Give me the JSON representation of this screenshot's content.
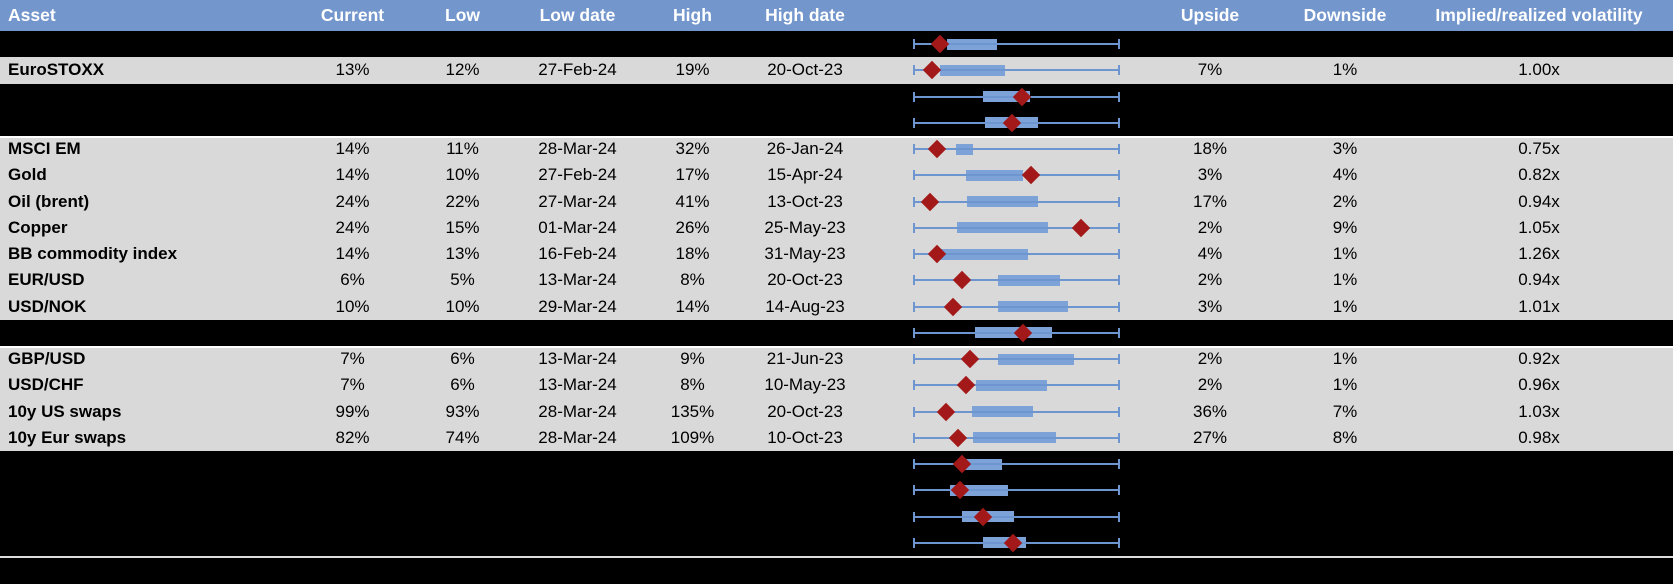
{
  "chart_data": {
    "type": "table",
    "columns": [
      "Asset",
      "Current",
      "Low",
      "Low date",
      "High",
      "High date",
      "",
      "Upside",
      "Downside",
      "Implied/realized volatility"
    ],
    "boxplot_units": "percent of plot-column width; w1/w2 = whisker ends, b1/b2 = box ends, d = red diamond (current) marker",
    "rows": [
      {
        "dark": true,
        "sep_above": false,
        "plot": {
          "w1": 19.3,
          "b1": 31.6,
          "b2": 49.8,
          "w2": 93.8,
          "d": 29.1
        }
      },
      {
        "dark": false,
        "sep_above": false,
        "cells": {
          "asset": "EuroSTOXX",
          "current": "13%",
          "low": "12%",
          "low_date": "27-Feb-24",
          "high": "19%",
          "high_date": "20-Oct-23",
          "upside": "7%",
          "downside": "1%",
          "implied_realized": "1.00x"
        },
        "plot": {
          "w1": 19.3,
          "b1": 29.1,
          "b2": 52.7,
          "w2": 93.8,
          "d": 26.2
        }
      },
      {
        "dark": true,
        "sep_above": false,
        "plot": {
          "w1": 19.3,
          "b1": 44.7,
          "b2": 61.8,
          "w2": 93.8,
          "d": 58.9
        }
      },
      {
        "dark": true,
        "sep_above": false,
        "plot": {
          "w1": 19.3,
          "b1": 45.5,
          "b2": 64.7,
          "w2": 93.8,
          "d": 55.3
        }
      },
      {
        "dark": false,
        "sep_above": true,
        "cells": {
          "asset": "MSCI EM",
          "current": "14%",
          "low": "11%",
          "low_date": "28-Mar-24",
          "high": "32%",
          "high_date": "26-Jan-24",
          "upside": "18%",
          "downside": "3%",
          "implied_realized": "0.75x"
        },
        "plot": {
          "w1": 19.3,
          "b1": 34.9,
          "b2": 41.1,
          "w2": 93.8,
          "d": 28.0
        }
      },
      {
        "dark": false,
        "sep_above": false,
        "cells": {
          "asset": "Gold",
          "current": "14%",
          "low": "10%",
          "low_date": "27-Feb-24",
          "high": "17%",
          "high_date": "15-Apr-24",
          "upside": "3%",
          "downside": "4%",
          "implied_realized": "0.82x"
        },
        "plot": {
          "w1": 19.3,
          "b1": 38.5,
          "b2": 59.3,
          "w2": 93.8,
          "d": 62.2
        }
      },
      {
        "dark": false,
        "sep_above": false,
        "cells": {
          "asset": "Oil (brent)",
          "current": "24%",
          "low": "22%",
          "low_date": "27-Mar-24",
          "high": "41%",
          "high_date": "13-Oct-23",
          "upside": "17%",
          "downside": "2%",
          "implied_realized": "0.94x"
        },
        "plot": {
          "w1": 19.3,
          "b1": 38.9,
          "b2": 64.7,
          "w2": 93.8,
          "d": 25.5
        }
      },
      {
        "dark": false,
        "sep_above": false,
        "cells": {
          "asset": "Copper",
          "current": "24%",
          "low": "15%",
          "low_date": "01-Mar-24",
          "high": "26%",
          "high_date": "25-May-23",
          "upside": "2%",
          "downside": "9%",
          "implied_realized": "1.05x"
        },
        "plot": {
          "w1": 19.3,
          "b1": 35.3,
          "b2": 68.4,
          "w2": 93.8,
          "d": 80.4
        }
      },
      {
        "dark": false,
        "sep_above": false,
        "cells": {
          "asset": "BB commodity index",
          "current": "14%",
          "low": "13%",
          "low_date": "16-Feb-24",
          "high": "18%",
          "high_date": "31-May-23",
          "upside": "4%",
          "downside": "1%",
          "implied_realized": "1.26x"
        },
        "plot": {
          "w1": 19.3,
          "b1": 29.1,
          "b2": 61.1,
          "w2": 93.8,
          "d": 28.0
        }
      },
      {
        "dark": false,
        "sep_above": false,
        "cells": {
          "asset": "EUR/USD",
          "current": "6%",
          "low": "5%",
          "low_date": "13-Mar-24",
          "high": "8%",
          "high_date": "20-Oct-23",
          "upside": "2%",
          "downside": "1%",
          "implied_realized": "0.94x"
        },
        "plot": {
          "w1": 19.3,
          "b1": 50.2,
          "b2": 72.7,
          "w2": 93.8,
          "d": 37.1
        }
      },
      {
        "dark": false,
        "sep_above": false,
        "cells": {
          "asset": "USD/NOK",
          "current": "10%",
          "low": "10%",
          "low_date": "29-Mar-24",
          "high": "14%",
          "high_date": "14-Aug-23",
          "upside": "3%",
          "downside": "1%",
          "implied_realized": "1.01x"
        },
        "plot": {
          "w1": 19.3,
          "b1": 50.2,
          "b2": 75.6,
          "w2": 93.8,
          "d": 33.8
        }
      },
      {
        "dark": true,
        "sep_above": false,
        "plot": {
          "w1": 19.3,
          "b1": 41.8,
          "b2": 69.8,
          "w2": 93.8,
          "d": 59.3
        }
      },
      {
        "dark": false,
        "sep_above": true,
        "cells": {
          "asset": "GBP/USD",
          "current": "7%",
          "low": "6%",
          "low_date": "13-Mar-24",
          "high": "9%",
          "high_date": "21-Jun-23",
          "upside": "2%",
          "downside": "1%",
          "implied_realized": "0.92x"
        },
        "plot": {
          "w1": 19.3,
          "b1": 50.2,
          "b2": 77.8,
          "w2": 93.8,
          "d": 40.0
        }
      },
      {
        "dark": false,
        "sep_above": false,
        "cells": {
          "asset": "USD/CHF",
          "current": "7%",
          "low": "6%",
          "low_date": "13-Mar-24",
          "high": "8%",
          "high_date": "10-May-23",
          "upside": "2%",
          "downside": "1%",
          "implied_realized": "0.96x"
        },
        "plot": {
          "w1": 19.3,
          "b1": 42.2,
          "b2": 68.0,
          "w2": 93.8,
          "d": 38.5
        }
      },
      {
        "dark": false,
        "sep_above": false,
        "cells": {
          "asset": "10y US swaps",
          "current": "99%",
          "low": "93%",
          "low_date": "28-Mar-24",
          "high": "135%",
          "high_date": "20-Oct-23",
          "upside": "36%",
          "downside": "7%",
          "implied_realized": "1.03x"
        },
        "plot": {
          "w1": 19.3,
          "b1": 40.7,
          "b2": 62.9,
          "w2": 93.8,
          "d": 31.3
        }
      },
      {
        "dark": false,
        "sep_above": false,
        "cells": {
          "asset": "10y Eur swaps",
          "current": "82%",
          "low": "74%",
          "low_date": "28-Mar-24",
          "high": "109%",
          "high_date": "10-Oct-23",
          "upside": "27%",
          "downside": "8%",
          "implied_realized": "0.98x"
        },
        "plot": {
          "w1": 19.3,
          "b1": 41.1,
          "b2": 71.3,
          "w2": 93.8,
          "d": 35.6
        }
      },
      {
        "dark": true,
        "sep_above": false,
        "plot": {
          "w1": 19.3,
          "b1": 38.2,
          "b2": 51.6,
          "w2": 93.8,
          "d": 37.1
        }
      },
      {
        "dark": true,
        "sep_above": false,
        "plot": {
          "w1": 19.3,
          "b1": 32.7,
          "b2": 53.8,
          "w2": 93.8,
          "d": 36.4
        }
      },
      {
        "dark": true,
        "sep_above": false,
        "plot": {
          "w1": 19.3,
          "b1": 37.1,
          "b2": 56.0,
          "w2": 93.8,
          "d": 44.7
        }
      },
      {
        "dark": true,
        "sep_above": false,
        "plot": {
          "w1": 19.3,
          "b1": 44.7,
          "b2": 60.4,
          "w2": 93.8,
          "d": 55.6
        }
      }
    ]
  },
  "colors": {
    "header_bg": "#7396cc",
    "header_text": "#ffffff",
    "row_light": "#d9d9d9",
    "row_dark": "#000000",
    "box_fill": "#7da2d8",
    "whisker": "#6d96d0",
    "diamond": "#a31919",
    "separator": "#ffffff"
  }
}
